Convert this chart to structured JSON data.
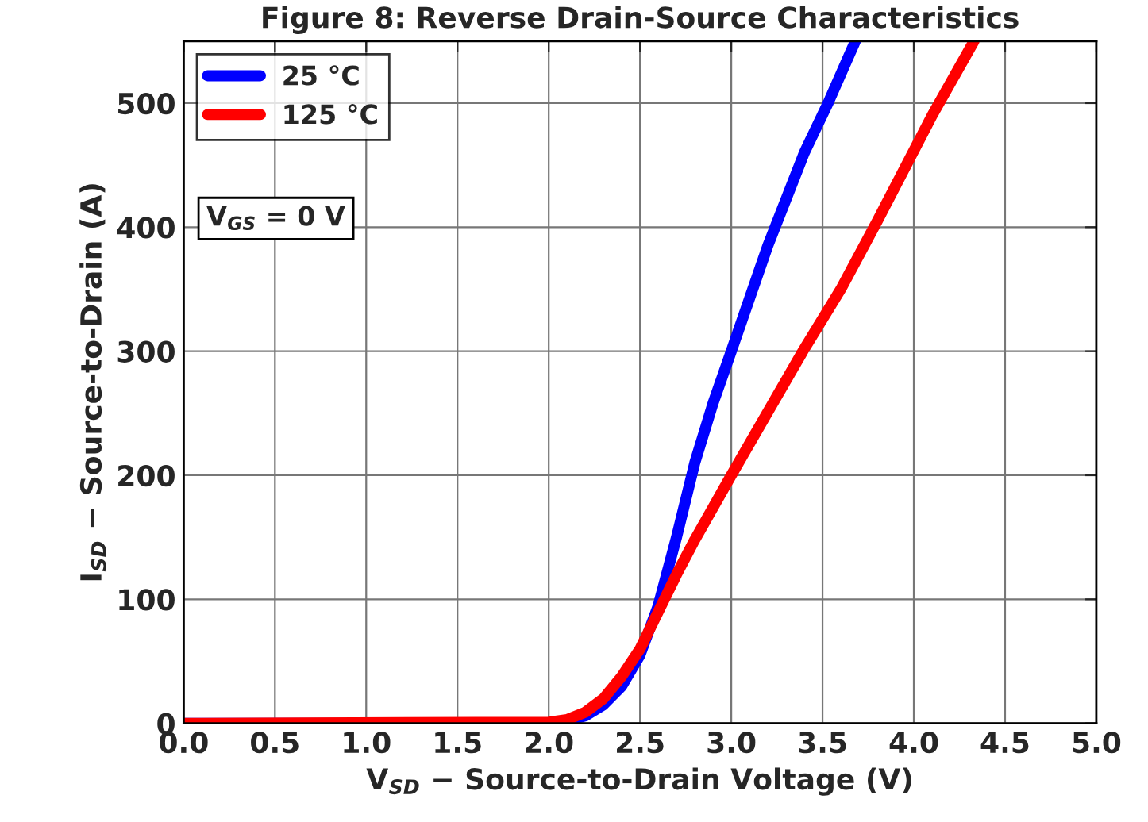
{
  "chart_data": {
    "type": "line",
    "title": "Figure 8: Reverse Drain-Source Characteristics",
    "xlabel": "V$_{SD}$ − Source-to-Drain Voltage (V)",
    "ylabel": "I$_{SD}$ − Source-to-Drain (A)",
    "xlim": [
      0,
      5
    ],
    "ylim": [
      0,
      550
    ],
    "xticks": [
      {
        "value": 0,
        "label": "0.0"
      },
      0.5,
      {
        "value": 1,
        "label": "1.0"
      },
      1.5,
      {
        "value": 2,
        "label": "2.0"
      },
      2.5,
      {
        "value": 3,
        "label": "3.0"
      },
      3.5,
      {
        "value": 4,
        "label": "4.0"
      },
      4.5,
      {
        "value": 5,
        "label": "5.0"
      }
    ],
    "yticks": [
      0,
      100,
      200,
      300,
      400,
      500
    ],
    "grid": true,
    "legend": "top left",
    "marker": "none",
    "line_style": "solid",
    "annotations": [
      "V$_{GS}$ = 0 V"
    ],
    "series": [
      {
        "name": "25 °C",
        "color": "#0000ff",
        "x": [
          0,
          2.0,
          2.1,
          2.2,
          2.3,
          2.4,
          2.5,
          2.6,
          2.7,
          2.8,
          2.9,
          3.0,
          3.2,
          3.4,
          3.53,
          3.68
        ],
        "values": [
          0,
          0,
          2,
          6,
          15,
          30,
          55,
          95,
          150,
          210,
          258,
          300,
          385,
          460,
          500,
          550
        ]
      },
      {
        "name": "125 °C",
        "color": "#ff0000",
        "x": [
          0,
          2.0,
          2.1,
          2.2,
          2.3,
          2.4,
          2.5,
          2.6,
          2.7,
          2.8,
          3.0,
          3.2,
          3.4,
          3.6,
          3.8,
          4.1,
          4.33
        ],
        "values": [
          0,
          1,
          3,
          9,
          20,
          38,
          60,
          90,
          120,
          148,
          200,
          251,
          302,
          350,
          405,
          490,
          550
        ]
      }
    ]
  }
}
